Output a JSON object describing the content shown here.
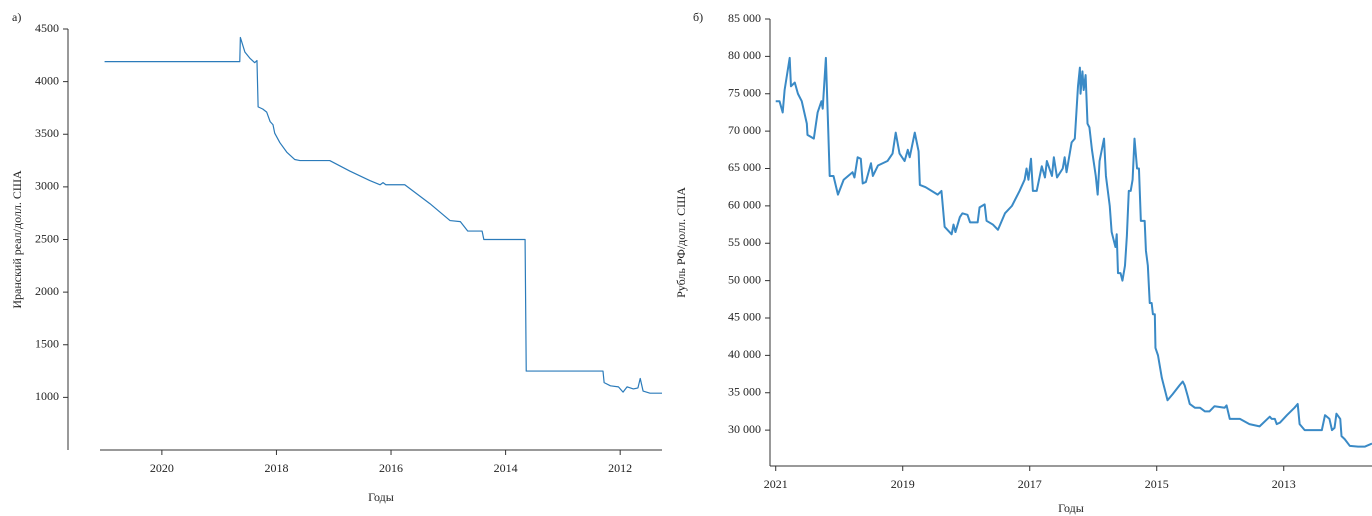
{
  "chart_data": [
    {
      "type": "line",
      "label": "а)",
      "xlabel": "Годы",
      "ylabel": "Иранский реал/долл. США",
      "xlim": [
        2021.08,
        2011.27
      ],
      "xticks": [
        2020,
        2018,
        2016,
        2014,
        2012
      ],
      "ylim": [
        500,
        4500
      ],
      "yticks": [
        1000,
        1500,
        2000,
        2500,
        3000,
        3500,
        4000,
        4500
      ],
      "series": [
        {
          "color": "#2b7bba",
          "x": [
            2021.0,
            2018.64,
            2018.63,
            2018.55,
            2018.46,
            2018.38,
            2018.34,
            2018.32,
            2018.24,
            2018.17,
            2018.11,
            2018.06,
            2018.03,
            2017.94,
            2017.82,
            2017.68,
            2017.59,
            2017.07,
            2016.72,
            2016.37,
            2016.19,
            2016.14,
            2016.09,
            2015.76,
            2015.32,
            2014.97,
            2014.79,
            2014.66,
            2014.41,
            2014.38,
            2013.66,
            2013.64,
            2012.3,
            2012.28,
            2012.17,
            2012.03,
            2011.95,
            2011.88,
            2011.77,
            2011.69,
            2011.65,
            2011.6,
            2011.48,
            2011.27
          ],
          "values": [
            4190,
            4190,
            4420,
            4280,
            4220,
            4180,
            4200,
            3760,
            3740,
            3710,
            3620,
            3590,
            3510,
            3420,
            3330,
            3260,
            3250,
            3250,
            3150,
            3060,
            3020,
            3040,
            3020,
            3020,
            2840,
            2680,
            2670,
            2580,
            2580,
            2500,
            2500,
            1250,
            1250,
            1140,
            1110,
            1100,
            1050,
            1100,
            1080,
            1090,
            1180,
            1060,
            1040,
            1040
          ]
        }
      ]
    },
    {
      "type": "line",
      "label": "б)",
      "xlabel": "Годы",
      "ylabel": "Рубль РФ/долл. США",
      "xlim": [
        2021.09,
        2011.61
      ],
      "xticks": [
        2021,
        2019,
        2017,
        2015,
        2013
      ],
      "ylim": [
        25200,
        85000
      ],
      "yticks": [
        {
          "value": 30000,
          "label": "30 000"
        },
        {
          "value": 35000,
          "label": "35 000"
        },
        {
          "value": 40000,
          "label": "40 000"
        },
        {
          "value": 45000,
          "label": "45 000"
        },
        {
          "value": 50000,
          "label": "50 000"
        },
        {
          "value": 55000,
          "label": "55 000"
        },
        {
          "value": 60000,
          "label": "60 000"
        },
        {
          "value": 65000,
          "label": "65 000"
        },
        {
          "value": 70000,
          "label": "70 000"
        },
        {
          "value": 75000,
          "label": "75 000"
        },
        {
          "value": 80000,
          "label": "80 000"
        },
        {
          "value": 85000,
          "label": "85 000"
        }
      ],
      "series": [
        {
          "color": "#3a8ac6",
          "x": [
            2021.0,
            2020.94,
            2020.89,
            2020.86,
            2020.78,
            2020.76,
            2020.7,
            2020.65,
            2020.59,
            2020.51,
            2020.5,
            2020.4,
            2020.34,
            2020.28,
            2020.26,
            2020.21,
            2020.18,
            2020.15,
            2020.09,
            2020.02,
            2019.93,
            2019.79,
            2019.76,
            2019.71,
            2019.66,
            2019.63,
            2019.58,
            2019.5,
            2019.47,
            2019.39,
            2019.24,
            2019.16,
            2019.11,
            2019.05,
            2018.97,
            2018.92,
            2018.89,
            2018.81,
            2018.75,
            2018.73,
            2018.64,
            2018.45,
            2018.39,
            2018.34,
            2018.23,
            2018.2,
            2018.17,
            2018.1,
            2018.06,
            2017.98,
            2017.94,
            2017.82,
            2017.79,
            2017.71,
            2017.68,
            2017.58,
            2017.5,
            2017.39,
            2017.28,
            2017.16,
            2017.08,
            2017.05,
            2017.02,
            2016.98,
            2016.95,
            2016.89,
            2016.81,
            2016.76,
            2016.73,
            2016.65,
            2016.62,
            2016.57,
            2016.48,
            2016.45,
            2016.42,
            2016.34,
            2016.29,
            2016.24,
            2016.21,
            2016.2,
            2016.17,
            2016.15,
            2016.12,
            2016.09,
            2016.06,
            2016.02,
            2015.96,
            2015.93,
            2015.9,
            2015.83,
            2015.8,
            2015.74,
            2015.71,
            2015.65,
            2015.63,
            2015.61,
            2015.57,
            2015.54,
            2015.5,
            2015.47,
            2015.44,
            2015.41,
            2015.38,
            2015.35,
            2015.31,
            2015.28,
            2015.25,
            2015.19,
            2015.17,
            2015.14,
            2015.11,
            2015.08,
            2015.06,
            2015.03,
            2015.02,
            2014.98,
            2014.95,
            2014.92,
            2014.89,
            2014.86,
            2014.83,
            2014.75,
            2014.64,
            2014.59,
            2014.56,
            2014.51,
            2014.48,
            2014.4,
            2014.32,
            2014.24,
            2014.17,
            2014.09,
            2013.93,
            2013.9,
            2013.85,
            2013.69,
            2013.54,
            2013.38,
            2013.22,
            2013.19,
            2013.14,
            2013.11,
            2013.06,
            2012.95,
            2012.83,
            2012.78,
            2012.75,
            2012.67,
            2012.4,
            2012.35,
            2012.28,
            2012.24,
            2012.2,
            2012.17,
            2012.11,
            2012.09,
            2012.04,
            2011.96,
            2011.83,
            2011.72,
            2011.61
          ],
          "values": [
            74000,
            74000,
            72500,
            75500,
            79800,
            76000,
            76500,
            75000,
            74000,
            71000,
            69500,
            69000,
            72500,
            74000,
            73000,
            79800,
            72000,
            64000,
            64000,
            61500,
            63500,
            64500,
            63800,
            66500,
            66300,
            63000,
            63200,
            65700,
            64000,
            65400,
            66000,
            67000,
            69800,
            67000,
            66000,
            67500,
            66500,
            69800,
            67300,
            62800,
            62500,
            61500,
            62000,
            57200,
            56200,
            57500,
            56500,
            58500,
            59000,
            58800,
            57800,
            57800,
            59800,
            60200,
            58000,
            57500,
            56800,
            59000,
            60000,
            62000,
            63500,
            65000,
            63500,
            66300,
            62000,
            62000,
            65300,
            63800,
            66000,
            64000,
            66500,
            63800,
            65000,
            66500,
            64500,
            68500,
            69000,
            76000,
            78500,
            75000,
            78000,
            75500,
            77500,
            71000,
            70500,
            67500,
            64000,
            61500,
            66000,
            69000,
            64000,
            60000,
            56500,
            54500,
            56200,
            51000,
            51000,
            50000,
            52000,
            56000,
            62000,
            62000,
            63500,
            69000,
            65000,
            65000,
            58000,
            58000,
            54000,
            52000,
            47000,
            47000,
            45500,
            45500,
            41000,
            40000,
            38500,
            37000,
            36000,
            35000,
            34000,
            34800,
            36000,
            36500,
            36000,
            34500,
            33500,
            33000,
            33000,
            32500,
            32500,
            33200,
            33000,
            33300,
            31500,
            31500,
            30800,
            30500,
            31800,
            31500,
            31500,
            30800,
            31000,
            32000,
            33000,
            33500,
            30800,
            30000,
            30000,
            32000,
            31500,
            30000,
            30300,
            32200,
            31500,
            29200,
            28800,
            27900,
            27800,
            27800,
            28200
          ]
        }
      ]
    }
  ]
}
